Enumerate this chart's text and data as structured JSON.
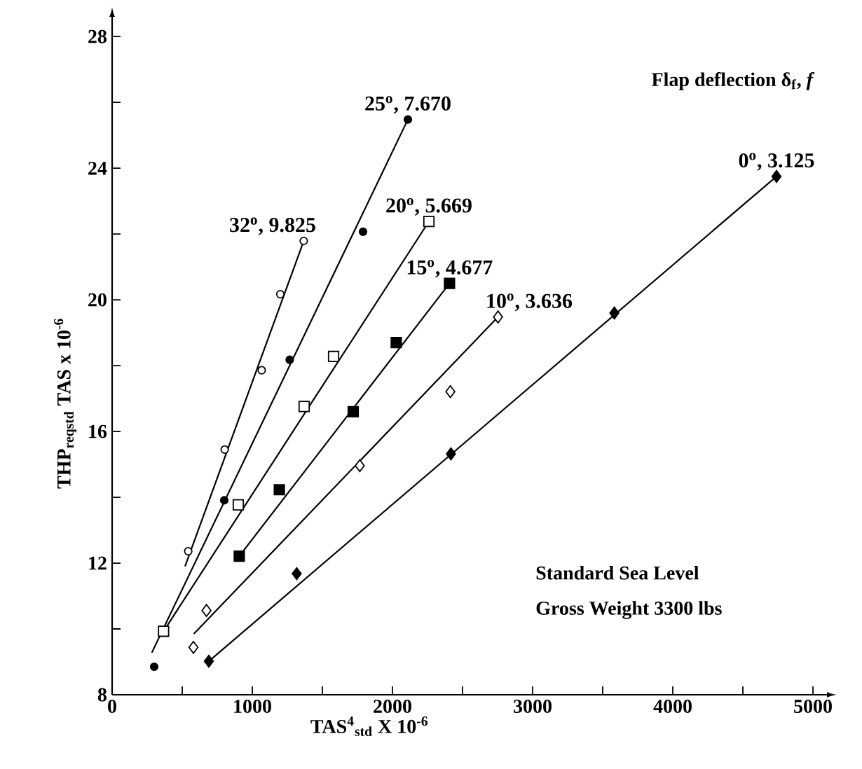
{
  "chart_data": {
    "type": "scatter",
    "xlabel": "TAS$^{4}$$_{std}$ X 10$^{-6}$",
    "ylabel": "THP$_{reqstd}$ TAS x 10$^{-6}$",
    "xlim": [
      0,
      5100
    ],
    "ylim": [
      8,
      28.6
    ],
    "xticks": [
      0,
      {
        "value": 500,
        "label": null
      },
      1000,
      {
        "value": 1500,
        "label": null
      },
      2000,
      {
        "value": 2500,
        "label": null
      },
      3000,
      {
        "value": 3500,
        "label": null
      },
      4000,
      {
        "value": 4500,
        "label": null
      },
      5000
    ],
    "yticks": [
      8,
      {
        "value": 10,
        "label": null
      },
      12,
      {
        "value": 14,
        "label": null
      },
      16,
      {
        "value": 18,
        "label": null
      },
      20,
      {
        "value": 22,
        "label": null
      },
      24,
      {
        "value": 26,
        "label": null
      },
      28
    ],
    "grid": false,
    "annotations": [
      "Flap deflection δ$_{f}$, *f*",
      "Standard Sea Level",
      "Gross Weight 3300 lbs"
    ],
    "series": [
      {
        "name": "32$^{o}$, 9.825",
        "color": "#000000",
        "marker": "circle",
        "x": [
          543,
          803,
          1067,
          1200,
          1367
        ],
        "values": [
          12.36,
          15.45,
          17.86,
          20.17,
          21.79
        ]
      },
      {
        "name": "25$^{o}$, 7.670",
        "color": "#000000",
        "marker": "circle",
        "x": [
          300,
          800,
          1267,
          1790,
          2110
        ],
        "values": [
          8.85,
          13.91,
          18.18,
          22.07,
          25.48
        ]
      },
      {
        "name": "20$^{o}$, 5.669",
        "color": "#000000",
        "marker": "square",
        "x": [
          367,
          900,
          1370,
          1580,
          2260
        ],
        "values": [
          9.93,
          13.77,
          16.76,
          18.28,
          22.38
        ]
      },
      {
        "name": "15$^{o}$, 4.677",
        "color": "#000000",
        "marker": "square",
        "x": [
          907,
          1193,
          1720,
          2027,
          2407
        ],
        "values": [
          12.21,
          14.23,
          16.6,
          18.7,
          20.5
        ]
      },
      {
        "name": "10$^{o}$, 3.636",
        "color": "#000000",
        "marker": "diamond",
        "x": [
          580,
          673,
          1767,
          2413,
          2753
        ],
        "values": [
          9.44,
          10.56,
          14.96,
          17.21,
          19.48
        ]
      },
      {
        "name": "0$^{o}$, 3.125",
        "color": "#000000",
        "marker": "diamond",
        "x": [
          690,
          1317,
          2417,
          3583,
          4740
        ],
        "values": [
          9.02,
          11.68,
          15.32,
          19.6,
          23.75
        ]
      },
      {
        "type": "line",
        "color": "#000000",
        "marker": "none",
        "x": [
          520,
          1367
        ],
        "values": [
          11.9,
          21.79
        ]
      },
      {
        "type": "line",
        "color": "#000000",
        "marker": "none",
        "x": [
          283,
          2110
        ],
        "values": [
          9.28,
          25.48
        ]
      },
      {
        "type": "line",
        "color": "#000000",
        "marker": "none",
        "x": [
          367,
          2260
        ],
        "values": [
          9.93,
          22.38
        ]
      },
      {
        "type": "line",
        "color": "#000000",
        "marker": "none",
        "x": [
          907,
          2407
        ],
        "values": [
          12.21,
          20.5
        ]
      },
      {
        "type": "line",
        "color": "#000000",
        "marker": "none",
        "x": [
          583,
          2753
        ],
        "values": [
          9.85,
          19.48
        ]
      },
      {
        "type": "line",
        "color": "#000000",
        "marker": "none",
        "x": [
          690,
          4740
        ],
        "values": [
          9.02,
          23.75
        ]
      }
    ]
  }
}
